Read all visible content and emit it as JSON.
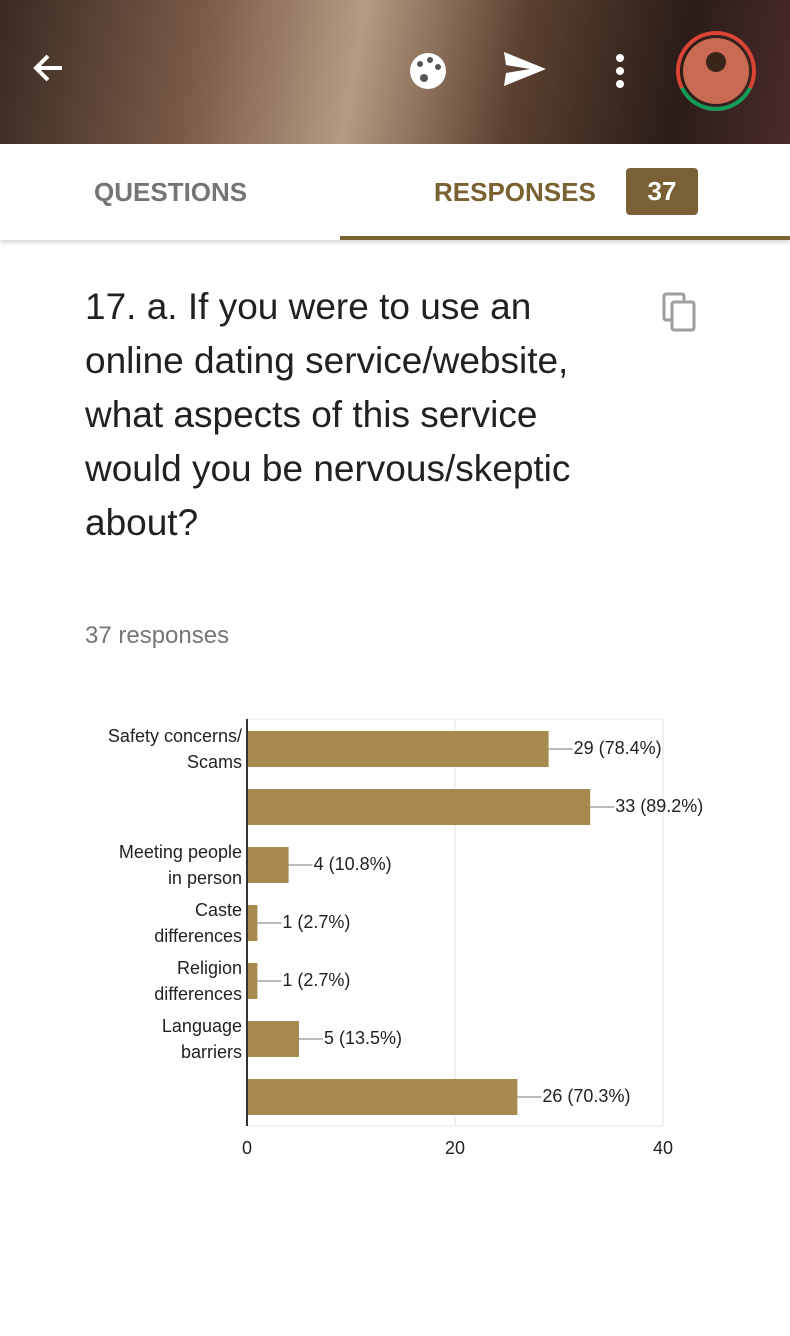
{
  "tabs": {
    "questions": "QUESTIONS",
    "responses": "RESPONSES",
    "count": "37"
  },
  "question": {
    "title": "17. a. If you were to use an online dating service/website, what aspects of this service would you be nervous/skeptic about?",
    "responses": "37 responses"
  },
  "chart_data": {
    "type": "hbar",
    "categories": [
      "Safety concerns/\nScams",
      null,
      "Meeting people\nin person",
      "Caste\ndifferences",
      "Religion\ndifferences",
      "Language\nbarriers",
      null
    ],
    "values": [
      29,
      33,
      4,
      1,
      1,
      5,
      26
    ],
    "value_labels": [
      "29 (78.4%)",
      "33 (89.2%)",
      "4 (10.8%)",
      "1 (2.7%)",
      "1 (2.7%)",
      "5 (13.5%)",
      "26 (70.3%)"
    ],
    "color": "#a68a4f",
    "xlim": [
      0,
      40
    ],
    "xticks": [
      0,
      20,
      40
    ],
    "grid": true
  }
}
